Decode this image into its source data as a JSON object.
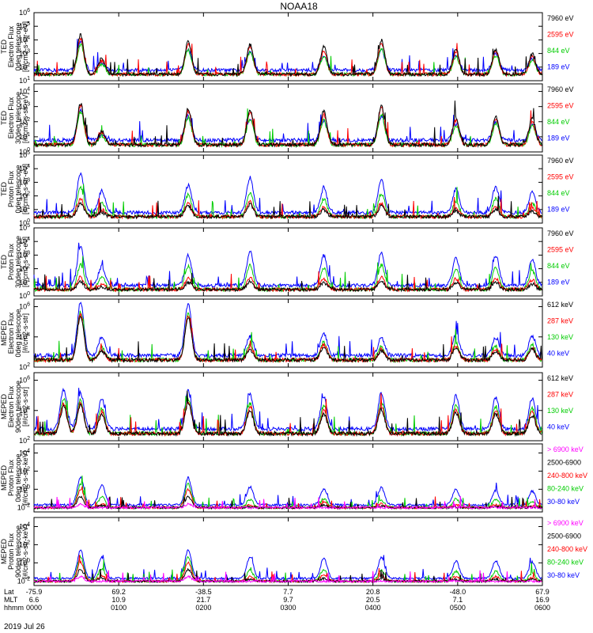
{
  "chart_data": {
    "type": "line",
    "title": "NOAA18",
    "date_label": "2019 Jul 26",
    "bottom_axis": {
      "row_labels": [
        "Lat",
        "MLT",
        "hhmm"
      ],
      "columns": [
        {
          "lat": "-75.9",
          "mlt": "6.6",
          "hhmm": "0000"
        },
        {
          "lat": "69.2",
          "mlt": "10.9",
          "hhmm": "0100"
        },
        {
          "lat": "-38.5",
          "mlt": "21.7",
          "hhmm": "0200"
        },
        {
          "lat": "7.7",
          "mlt": "9.7",
          "hhmm": "0300"
        },
        {
          "lat": "20.8",
          "mlt": "20.5",
          "hhmm": "0400"
        },
        {
          "lat": "-48.0",
          "mlt": "7.1",
          "hhmm": "0500"
        },
        {
          "lat": "67.9",
          "mlt": "16.9",
          "hhmm": "0600"
        }
      ]
    },
    "panels": [
      {
        "ylabel": [
          "TED",
          "Electron Flux",
          "0deg telescope",
          "[#/cm2-s-str-eV]"
        ],
        "yticks": [
          1,
          2,
          3,
          4,
          5,
          6
        ],
        "ylim": [
          1,
          6
        ],
        "legend": [
          {
            "label": "7960 eV",
            "color": "#000000"
          },
          {
            "label": "2595 eV",
            "color": "#ff0000"
          },
          {
            "label": "844 eV",
            "color": "#00cc00"
          },
          {
            "label": "189 eV",
            "color": "#0000ff"
          }
        ],
        "passes": [
          {
            "t": 0.55,
            "s": [
              2.9,
              2.6,
              2.2,
              2.1
            ]
          },
          {
            "t": 0.8,
            "s": [
              1.2,
              1.0,
              0.7,
              0.5
            ]
          },
          {
            "t": 1.82,
            "s": [
              2.4,
              2.2,
              1.8,
              1.6
            ]
          },
          {
            "t": 2.55,
            "s": [
              2.2,
              2.0,
              1.6,
              1.4
            ]
          },
          {
            "t": 3.42,
            "s": [
              2.0,
              1.7,
              1.3,
              1.1
            ]
          },
          {
            "t": 4.1,
            "s": [
              2.5,
              2.3,
              1.9,
              1.5
            ]
          },
          {
            "t": 4.98,
            "s": [
              1.8,
              1.6,
              1.3,
              1.1
            ]
          },
          {
            "t": 5.45,
            "s": [
              1.8,
              1.7,
              1.4,
              1.2
            ]
          },
          {
            "t": 5.88,
            "s": [
              1.5,
              1.3,
              1.0,
              0.8
            ]
          }
        ]
      },
      {
        "ylabel": [
          "TED",
          "Electron Flux",
          "30deg telescope",
          "[#/cm2-s-str-eV]"
        ],
        "yticks": [
          0,
          1,
          2,
          3,
          4
        ],
        "ylim": [
          0,
          4.5
        ],
        "legend": [
          {
            "label": "7960 eV",
            "color": "#000000"
          },
          {
            "label": "2595 eV",
            "color": "#ff0000"
          },
          {
            "label": "844 eV",
            "color": "#00cc00"
          },
          {
            "label": "189 eV",
            "color": "#0000ff"
          }
        ],
        "passes": [
          {
            "t": 0.55,
            "s": [
              2.7,
              2.6,
              2.2,
              2.0
            ]
          },
          {
            "t": 0.8,
            "s": [
              0.9,
              0.8,
              0.6,
              0.4
            ]
          },
          {
            "t": 1.82,
            "s": [
              2.4,
              2.2,
              1.8,
              1.6
            ]
          },
          {
            "t": 2.55,
            "s": [
              2.3,
              2.1,
              1.7,
              1.4
            ]
          },
          {
            "t": 3.42,
            "s": [
              2.2,
              2.0,
              1.6,
              1.3
            ]
          },
          {
            "t": 4.1,
            "s": [
              2.6,
              2.4,
              2.0,
              1.6
            ]
          },
          {
            "t": 4.98,
            "s": [
              1.8,
              1.6,
              1.3,
              1.1
            ]
          },
          {
            "t": 5.45,
            "s": [
              1.9,
              1.7,
              1.4,
              1.2
            ]
          },
          {
            "t": 5.88,
            "s": [
              1.7,
              1.5,
              1.2,
              1.0
            ]
          }
        ]
      },
      {
        "ylabel": [
          "TED",
          "Proton Flux",
          "0deg telescope",
          "[#/cm2-s-str-eV]"
        ],
        "yticks": [
          0,
          1,
          2,
          3,
          4,
          5
        ],
        "ylim": [
          0,
          5
        ],
        "legend": [
          {
            "label": "7960 eV",
            "color": "#000000"
          },
          {
            "label": "2595 eV",
            "color": "#ff0000"
          },
          {
            "label": "844 eV",
            "color": "#00cc00"
          },
          {
            "label": "189 eV",
            "color": "#0000ff"
          }
        ],
        "passes": [
          {
            "t": 0.55,
            "s": [
              1.0,
              1.3,
              2.1,
              2.9
            ]
          },
          {
            "t": 0.8,
            "s": [
              0.3,
              0.5,
              1.1,
              1.6
            ]
          },
          {
            "t": 1.82,
            "s": [
              0.8,
              1.0,
              1.6,
              2.0
            ]
          },
          {
            "t": 2.55,
            "s": [
              0.9,
              1.1,
              1.7,
              2.6
            ]
          },
          {
            "t": 3.42,
            "s": [
              0.5,
              0.7,
              1.3,
              1.8
            ]
          },
          {
            "t": 4.1,
            "s": [
              0.8,
              1.0,
              1.7,
              2.4
            ]
          },
          {
            "t": 4.98,
            "s": [
              0.4,
              0.6,
              1.1,
              1.7
            ]
          },
          {
            "t": 5.45,
            "s": [
              0.5,
              0.7,
              1.3,
              1.9
            ]
          },
          {
            "t": 5.88,
            "s": [
              0.4,
              0.6,
              1.0,
              1.5
            ]
          }
        ]
      },
      {
        "ylabel": [
          "TED",
          "Proton Flux",
          "30deg telescope",
          "[#/cm2-s-str-eV]"
        ],
        "yticks": [
          0,
          1,
          2,
          3,
          4,
          5
        ],
        "ylim": [
          0,
          5
        ],
        "legend": [
          {
            "label": "7960 eV",
            "color": "#000000"
          },
          {
            "label": "2595 eV",
            "color": "#ff0000"
          },
          {
            "label": "844 eV",
            "color": "#00cc00"
          },
          {
            "label": "189 eV",
            "color": "#0000ff"
          }
        ],
        "passes": [
          {
            "t": 0.55,
            "s": [
              0.6,
              0.9,
              1.8,
              2.9
            ]
          },
          {
            "t": 0.8,
            "s": [
              0.2,
              0.4,
              0.9,
              1.4
            ]
          },
          {
            "t": 1.82,
            "s": [
              0.5,
              0.8,
              1.7,
              2.2
            ]
          },
          {
            "t": 2.55,
            "s": [
              0.6,
              0.9,
              1.8,
              2.5
            ]
          },
          {
            "t": 3.42,
            "s": [
              0.5,
              0.8,
              1.6,
              2.2
            ]
          },
          {
            "t": 4.1,
            "s": [
              0.6,
              0.9,
              1.8,
              2.4
            ]
          },
          {
            "t": 4.98,
            "s": [
              0.5,
              0.8,
              1.5,
              2.0
            ]
          },
          {
            "t": 5.45,
            "s": [
              0.5,
              0.8,
              1.6,
              2.2
            ]
          },
          {
            "t": 5.88,
            "s": [
              0.4,
              0.7,
              1.4,
              1.9
            ]
          }
        ]
      },
      {
        "ylabel": [
          "MEPED",
          "Electron Flux",
          "0deg telescope",
          "[#/cm2-s-str]"
        ],
        "yticks": [
          2,
          4,
          6
        ],
        "ylim": [
          2,
          6.5
        ],
        "legend": [
          {
            "label": "612 keV",
            "color": "#000000"
          },
          {
            "label": "287 keV",
            "color": "#ff0000"
          },
          {
            "label": "130 keV",
            "color": "#00cc00"
          },
          {
            "label": "40 keV",
            "color": "#0000ff"
          }
        ],
        "passes": [
          {
            "t": 0.55,
            "s": [
              2.9,
              3.0,
              3.2,
              3.5
            ]
          },
          {
            "t": 0.8,
            "s": [
              0.6,
              0.7,
              0.9,
              1.2
            ]
          },
          {
            "t": 1.82,
            "s": [
              2.8,
              2.9,
              3.1,
              3.4
            ]
          },
          {
            "t": 2.55,
            "s": [
              0.7,
              0.8,
              1.0,
              1.3
            ]
          },
          {
            "t": 3.42,
            "s": [
              0.9,
              1.0,
              1.2,
              1.5
            ]
          },
          {
            "t": 4.1,
            "s": [
              0.6,
              0.7,
              0.9,
              1.2
            ]
          },
          {
            "t": 4.98,
            "s": [
              0.8,
              0.9,
              1.1,
              1.4
            ]
          },
          {
            "t": 5.45,
            "s": [
              0.6,
              0.7,
              0.9,
              1.2
            ]
          },
          {
            "t": 5.88,
            "s": [
              0.7,
              0.8,
              1.0,
              1.3
            ]
          }
        ]
      },
      {
        "ylabel": [
          "MEPED",
          "Electron Flux",
          "90deg telescope",
          "[#/cm2-s-str]"
        ],
        "yticks": [
          2,
          4,
          6
        ],
        "ylim": [
          2,
          6.5
        ],
        "legend": [
          {
            "label": "612 keV",
            "color": "#000000"
          },
          {
            "label": "287 keV",
            "color": "#ff0000"
          },
          {
            "label": "130 keV",
            "color": "#00cc00"
          },
          {
            "label": "40 keV",
            "color": "#0000ff"
          }
        ],
        "passes": [
          {
            "t": 0.35,
            "s": [
              1.8,
              2.0,
              2.3,
              2.6
            ]
          },
          {
            "t": 0.55,
            "s": [
              1.9,
              2.0,
              2.2,
              2.4
            ]
          },
          {
            "t": 0.8,
            "s": [
              1.2,
              1.4,
              1.7,
              2.0
            ]
          },
          {
            "t": 1.82,
            "s": [
              2.0,
              2.1,
              2.3,
              2.5
            ]
          },
          {
            "t": 2.55,
            "s": [
              1.5,
              1.7,
              2.0,
              2.3
            ]
          },
          {
            "t": 3.42,
            "s": [
              1.3,
              1.5,
              1.8,
              2.1
            ]
          },
          {
            "t": 4.1,
            "s": [
              1.6,
              1.8,
              2.1,
              2.4
            ]
          },
          {
            "t": 4.98,
            "s": [
              1.4,
              1.6,
              1.9,
              2.2
            ]
          },
          {
            "t": 5.45,
            "s": [
              1.3,
              1.5,
              1.8,
              2.1
            ]
          },
          {
            "t": 5.88,
            "s": [
              1.2,
              1.4,
              1.7,
              2.0
            ]
          }
        ]
      },
      {
        "ylabel": [
          "MEPED",
          "Proton Flux",
          "0deg telescope",
          "[#/cm2-s-str-keV]"
        ],
        "yticks": [
          -2,
          0,
          2,
          4
        ],
        "ylim": [
          -2.5,
          5
        ],
        "legend": [
          {
            "label": "> 6900 keV",
            "color": "#ff00ff"
          },
          {
            "label": "2500-6900",
            "color": "#000000"
          },
          {
            "label": "240-800 keV",
            "color": "#ff0000"
          },
          {
            "label": "80-240 keV",
            "color": "#00cc00"
          },
          {
            "label": "30-80 keV",
            "color": "#0000ff"
          }
        ],
        "passes": [
          {
            "t": 0.55,
            "s": [
              0.4,
              1.2,
              2.0,
              2.6,
              3.0
            ]
          },
          {
            "t": 0.8,
            "s": [
              0.0,
              0.2,
              0.4,
              1.2,
              2.2
            ]
          },
          {
            "t": 1.82,
            "s": [
              0.4,
              1.2,
              2.0,
              2.6,
              3.0
            ]
          },
          {
            "t": 2.55,
            "s": [
              0.0,
              0.1,
              0.3,
              0.9,
              2.0
            ]
          },
          {
            "t": 3.42,
            "s": [
              0.0,
              0.3,
              0.6,
              1.0,
              1.8
            ]
          },
          {
            "t": 4.1,
            "s": [
              0.0,
              0.2,
              0.4,
              0.8,
              1.9
            ]
          },
          {
            "t": 4.98,
            "s": [
              0.0,
              0.1,
              0.3,
              1.0,
              1.7
            ]
          },
          {
            "t": 5.45,
            "s": [
              0.0,
              0.1,
              0.3,
              0.9,
              1.6
            ]
          },
          {
            "t": 5.88,
            "s": [
              0.0,
              0.1,
              0.2,
              0.7,
              1.5
            ]
          }
        ]
      },
      {
        "ylabel": [
          "MEPED",
          "Proton Flux",
          "90deg telescope",
          "[#/cm2-s-str-keV]"
        ],
        "yticks": [
          -2,
          0,
          2,
          4
        ],
        "ylim": [
          -2.5,
          5
        ],
        "legend": [
          {
            "label": "> 6900 keV",
            "color": "#ff00ff"
          },
          {
            "label": "2500-6900",
            "color": "#000000"
          },
          {
            "label": "240-800 keV",
            "color": "#ff0000"
          },
          {
            "label": "80-240 keV",
            "color": "#00cc00"
          },
          {
            "label": "30-80 keV",
            "color": "#0000ff"
          }
        ],
        "passes": [
          {
            "t": 0.55,
            "s": [
              0.5,
              1.3,
              2.1,
              2.7,
              3.1
            ]
          },
          {
            "t": 0.8,
            "s": [
              0.0,
              0.3,
              0.6,
              1.4,
              2.3
            ]
          },
          {
            "t": 1.82,
            "s": [
              0.5,
              1.3,
              2.1,
              2.7,
              3.1
            ]
          },
          {
            "t": 2.55,
            "s": [
              0.0,
              0.2,
              0.5,
              1.2,
              2.4
            ]
          },
          {
            "t": 3.42,
            "s": [
              0.0,
              0.3,
              0.7,
              1.3,
              2.2
            ]
          },
          {
            "t": 4.1,
            "s": [
              0.0,
              0.3,
              0.6,
              1.2,
              2.3
            ]
          },
          {
            "t": 4.98,
            "s": [
              0.0,
              0.2,
              0.5,
              1.1,
              1.9
            ]
          },
          {
            "t": 5.45,
            "s": [
              0.0,
              0.2,
              0.5,
              1.1,
              2.0
            ]
          },
          {
            "t": 5.88,
            "s": [
              0.0,
              0.2,
              0.4,
              0.9,
              1.8
            ]
          }
        ]
      }
    ]
  }
}
